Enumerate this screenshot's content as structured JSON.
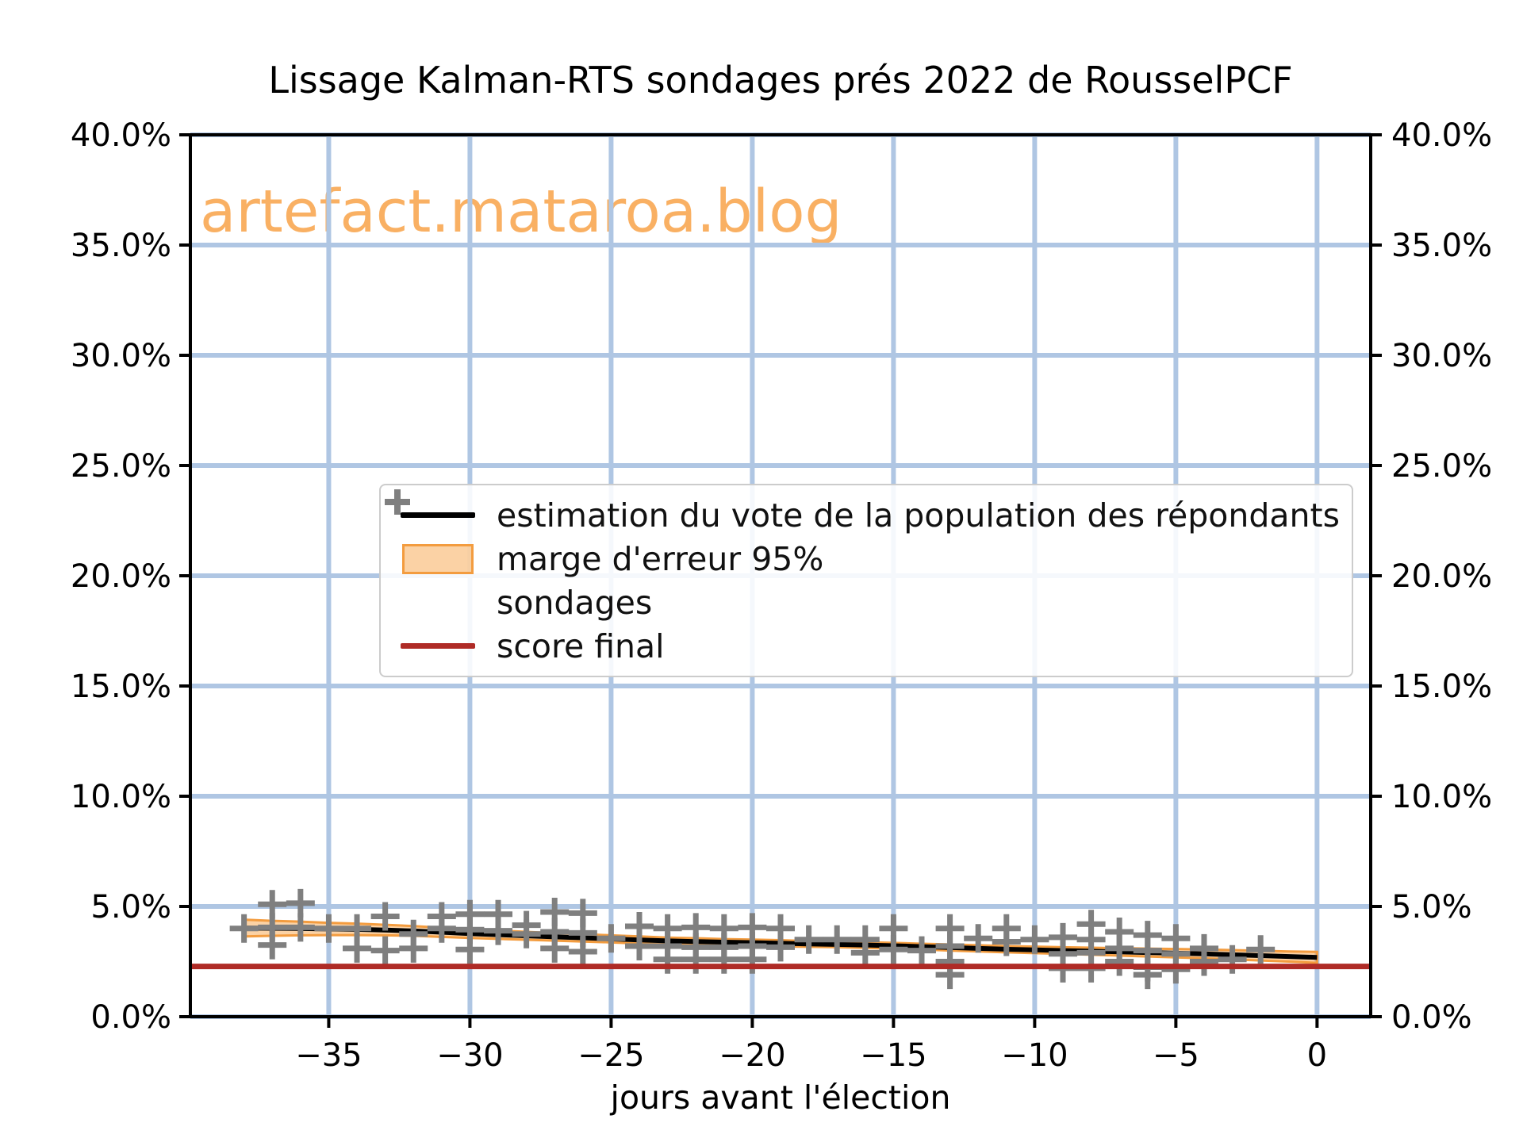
{
  "title": "Lissage Kalman-RTS sondages prés 2022 de RousselPCF",
  "watermark": "artefact.mataroa.blog",
  "colors": {
    "grid": "#afc6e3",
    "spine": "#000000",
    "estimation_line": "#000000",
    "band_fill": "rgba(248,166,76,0.50)",
    "band_edge": "#f39c3f",
    "scatter": "#7f7f7f",
    "final_line": "#af2b26",
    "watermark": "#f9a348",
    "tick_text": "#000000"
  },
  "legend": {
    "items": [
      {
        "label": "estimation du vote de la population des répondants",
        "swatch": "line-black"
      },
      {
        "label": "marge d'erreur 95%",
        "swatch": "band-orange"
      },
      {
        "label": "sondages",
        "swatch": "plus-gray"
      },
      {
        "label": "score final",
        "swatch": "line-darkred"
      }
    ]
  },
  "chart_data": {
    "type": "line",
    "title": "Lissage Kalman-RTS sondages prés 2022 de RousselPCF",
    "xlabel": "jours avant l'élection",
    "ylabel": "",
    "grid": true,
    "legend_position": "center-left inside axes",
    "xlim": [
      -39.9,
      1.9
    ],
    "ylim": [
      0,
      40
    ],
    "x_ticks": [
      -35,
      -30,
      -25,
      -20,
      -15,
      -10,
      -5,
      0
    ],
    "x_tick_labels": [
      "−35",
      "−30",
      "−25",
      "−20",
      "−15",
      "−10",
      "−5",
      "0"
    ],
    "y_ticks": [
      0,
      5,
      10,
      15,
      20,
      25,
      30,
      35,
      40
    ],
    "y_tick_labels": [
      "0.0%",
      "5.0%",
      "10.0%",
      "15.0%",
      "20.0%",
      "25.0%",
      "30.0%",
      "35.0%",
      "40.0%"
    ],
    "y_tick_labels_right": [
      "0.0%",
      "5.0%",
      "10.0%",
      "15.0%",
      "20.0%",
      "25.0%",
      "30.0%",
      "35.0%",
      "40.0%"
    ],
    "series": [
      {
        "name": "estimation du vote de la population des répondants",
        "type": "line",
        "x": [
          -38,
          -37,
          -36,
          -35,
          -34,
          -33,
          -32,
          -31,
          -30,
          -29,
          -28,
          -27,
          -26,
          -25,
          -24,
          -23,
          -22,
          -21,
          -20,
          -19,
          -18,
          -17,
          -16,
          -15,
          -14,
          -13,
          -12,
          -11,
          -10,
          -9,
          -8,
          -7,
          -6,
          -5,
          -4,
          -3,
          -2,
          -1,
          0
        ],
        "y": [
          4.02,
          4.01,
          4.0,
          3.98,
          3.96,
          3.93,
          3.89,
          3.83,
          3.77,
          3.72,
          3.67,
          3.62,
          3.58,
          3.53,
          3.48,
          3.44,
          3.41,
          3.38,
          3.36,
          3.33,
          3.3,
          3.28,
          3.25,
          3.22,
          3.18,
          3.14,
          3.1,
          3.06,
          3.03,
          3.0,
          2.97,
          2.94,
          2.91,
          2.88,
          2.85,
          2.81,
          2.77,
          2.73,
          2.69
        ]
      },
      {
        "name": "marge d'erreur 95%",
        "type": "band",
        "margin": [
          0.38,
          0.34,
          0.31,
          0.28,
          0.26,
          0.24,
          0.22,
          0.21,
          0.2,
          0.19,
          0.18,
          0.17,
          0.17,
          0.16,
          0.16,
          0.15,
          0.15,
          0.14,
          0.14,
          0.14,
          0.13,
          0.13,
          0.13,
          0.13,
          0.13,
          0.14,
          0.14,
          0.14,
          0.15,
          0.15,
          0.16,
          0.17,
          0.18,
          0.19,
          0.2,
          0.21,
          0.22,
          0.23,
          0.25
        ]
      },
      {
        "name": "sondages",
        "type": "scatter",
        "marker": "plus",
        "points": [
          [
            -38,
            4.0
          ],
          [
            -37,
            5.1
          ],
          [
            -37,
            4.05
          ],
          [
            -37,
            3.25
          ],
          [
            -36,
            5.15
          ],
          [
            -36,
            4.05
          ],
          [
            -35,
            4.0
          ],
          [
            -34,
            4.0
          ],
          [
            -34,
            3.1
          ],
          [
            -33,
            4.55
          ],
          [
            -33,
            3.0
          ],
          [
            -32,
            3.75
          ],
          [
            -32,
            3.1
          ],
          [
            -31,
            4.55
          ],
          [
            -31,
            4.0
          ],
          [
            -30,
            4.65
          ],
          [
            -30,
            3.95
          ],
          [
            -30,
            3.05
          ],
          [
            -29,
            4.65
          ],
          [
            -29,
            3.9
          ],
          [
            -28,
            4.15
          ],
          [
            -28,
            3.75
          ],
          [
            -27,
            4.75
          ],
          [
            -27,
            3.85
          ],
          [
            -27,
            3.1
          ],
          [
            -26,
            4.7
          ],
          [
            -26,
            3.8
          ],
          [
            -26,
            2.95
          ],
          [
            -25,
            3.55
          ],
          [
            -24,
            4.1
          ],
          [
            -24,
            3.2
          ],
          [
            -23,
            4.0
          ],
          [
            -23,
            3.2
          ],
          [
            -23,
            2.6
          ],
          [
            -22,
            4.05
          ],
          [
            -22,
            3.15
          ],
          [
            -22,
            2.6
          ],
          [
            -21,
            4.0
          ],
          [
            -21,
            3.15
          ],
          [
            -21,
            2.6
          ],
          [
            -20,
            4.05
          ],
          [
            -20,
            3.2
          ],
          [
            -20,
            2.6
          ],
          [
            -19,
            4.0
          ],
          [
            -19,
            3.15
          ],
          [
            -18,
            3.5
          ],
          [
            -17,
            3.5
          ],
          [
            -16,
            3.5
          ],
          [
            -16,
            2.9
          ],
          [
            -15,
            4.0
          ],
          [
            -15,
            3.05
          ],
          [
            -14,
            3.0
          ],
          [
            -13,
            4.0
          ],
          [
            -13,
            3.2
          ],
          [
            -13,
            2.5
          ],
          [
            -13,
            1.9
          ],
          [
            -12,
            3.55
          ],
          [
            -11,
            4.0
          ],
          [
            -11,
            3.4
          ],
          [
            -10,
            3.5
          ],
          [
            -9,
            3.6
          ],
          [
            -9,
            2.85
          ],
          [
            -9,
            2.2
          ],
          [
            -8,
            4.2
          ],
          [
            -8,
            3.5
          ],
          [
            -8,
            2.9
          ],
          [
            -8,
            2.2
          ],
          [
            -7,
            3.85
          ],
          [
            -7,
            3.1
          ],
          [
            -7,
            2.5
          ],
          [
            -6,
            3.7
          ],
          [
            -6,
            3.0
          ],
          [
            -6,
            2.25
          ],
          [
            -6,
            1.9
          ],
          [
            -5,
            3.55
          ],
          [
            -5,
            2.85
          ],
          [
            -5,
            2.15
          ],
          [
            -4,
            3.1
          ],
          [
            -4,
            2.5
          ],
          [
            -3,
            2.6
          ],
          [
            -2,
            3.05
          ]
        ]
      },
      {
        "name": "score final",
        "type": "hline",
        "y": 2.28
      }
    ]
  }
}
